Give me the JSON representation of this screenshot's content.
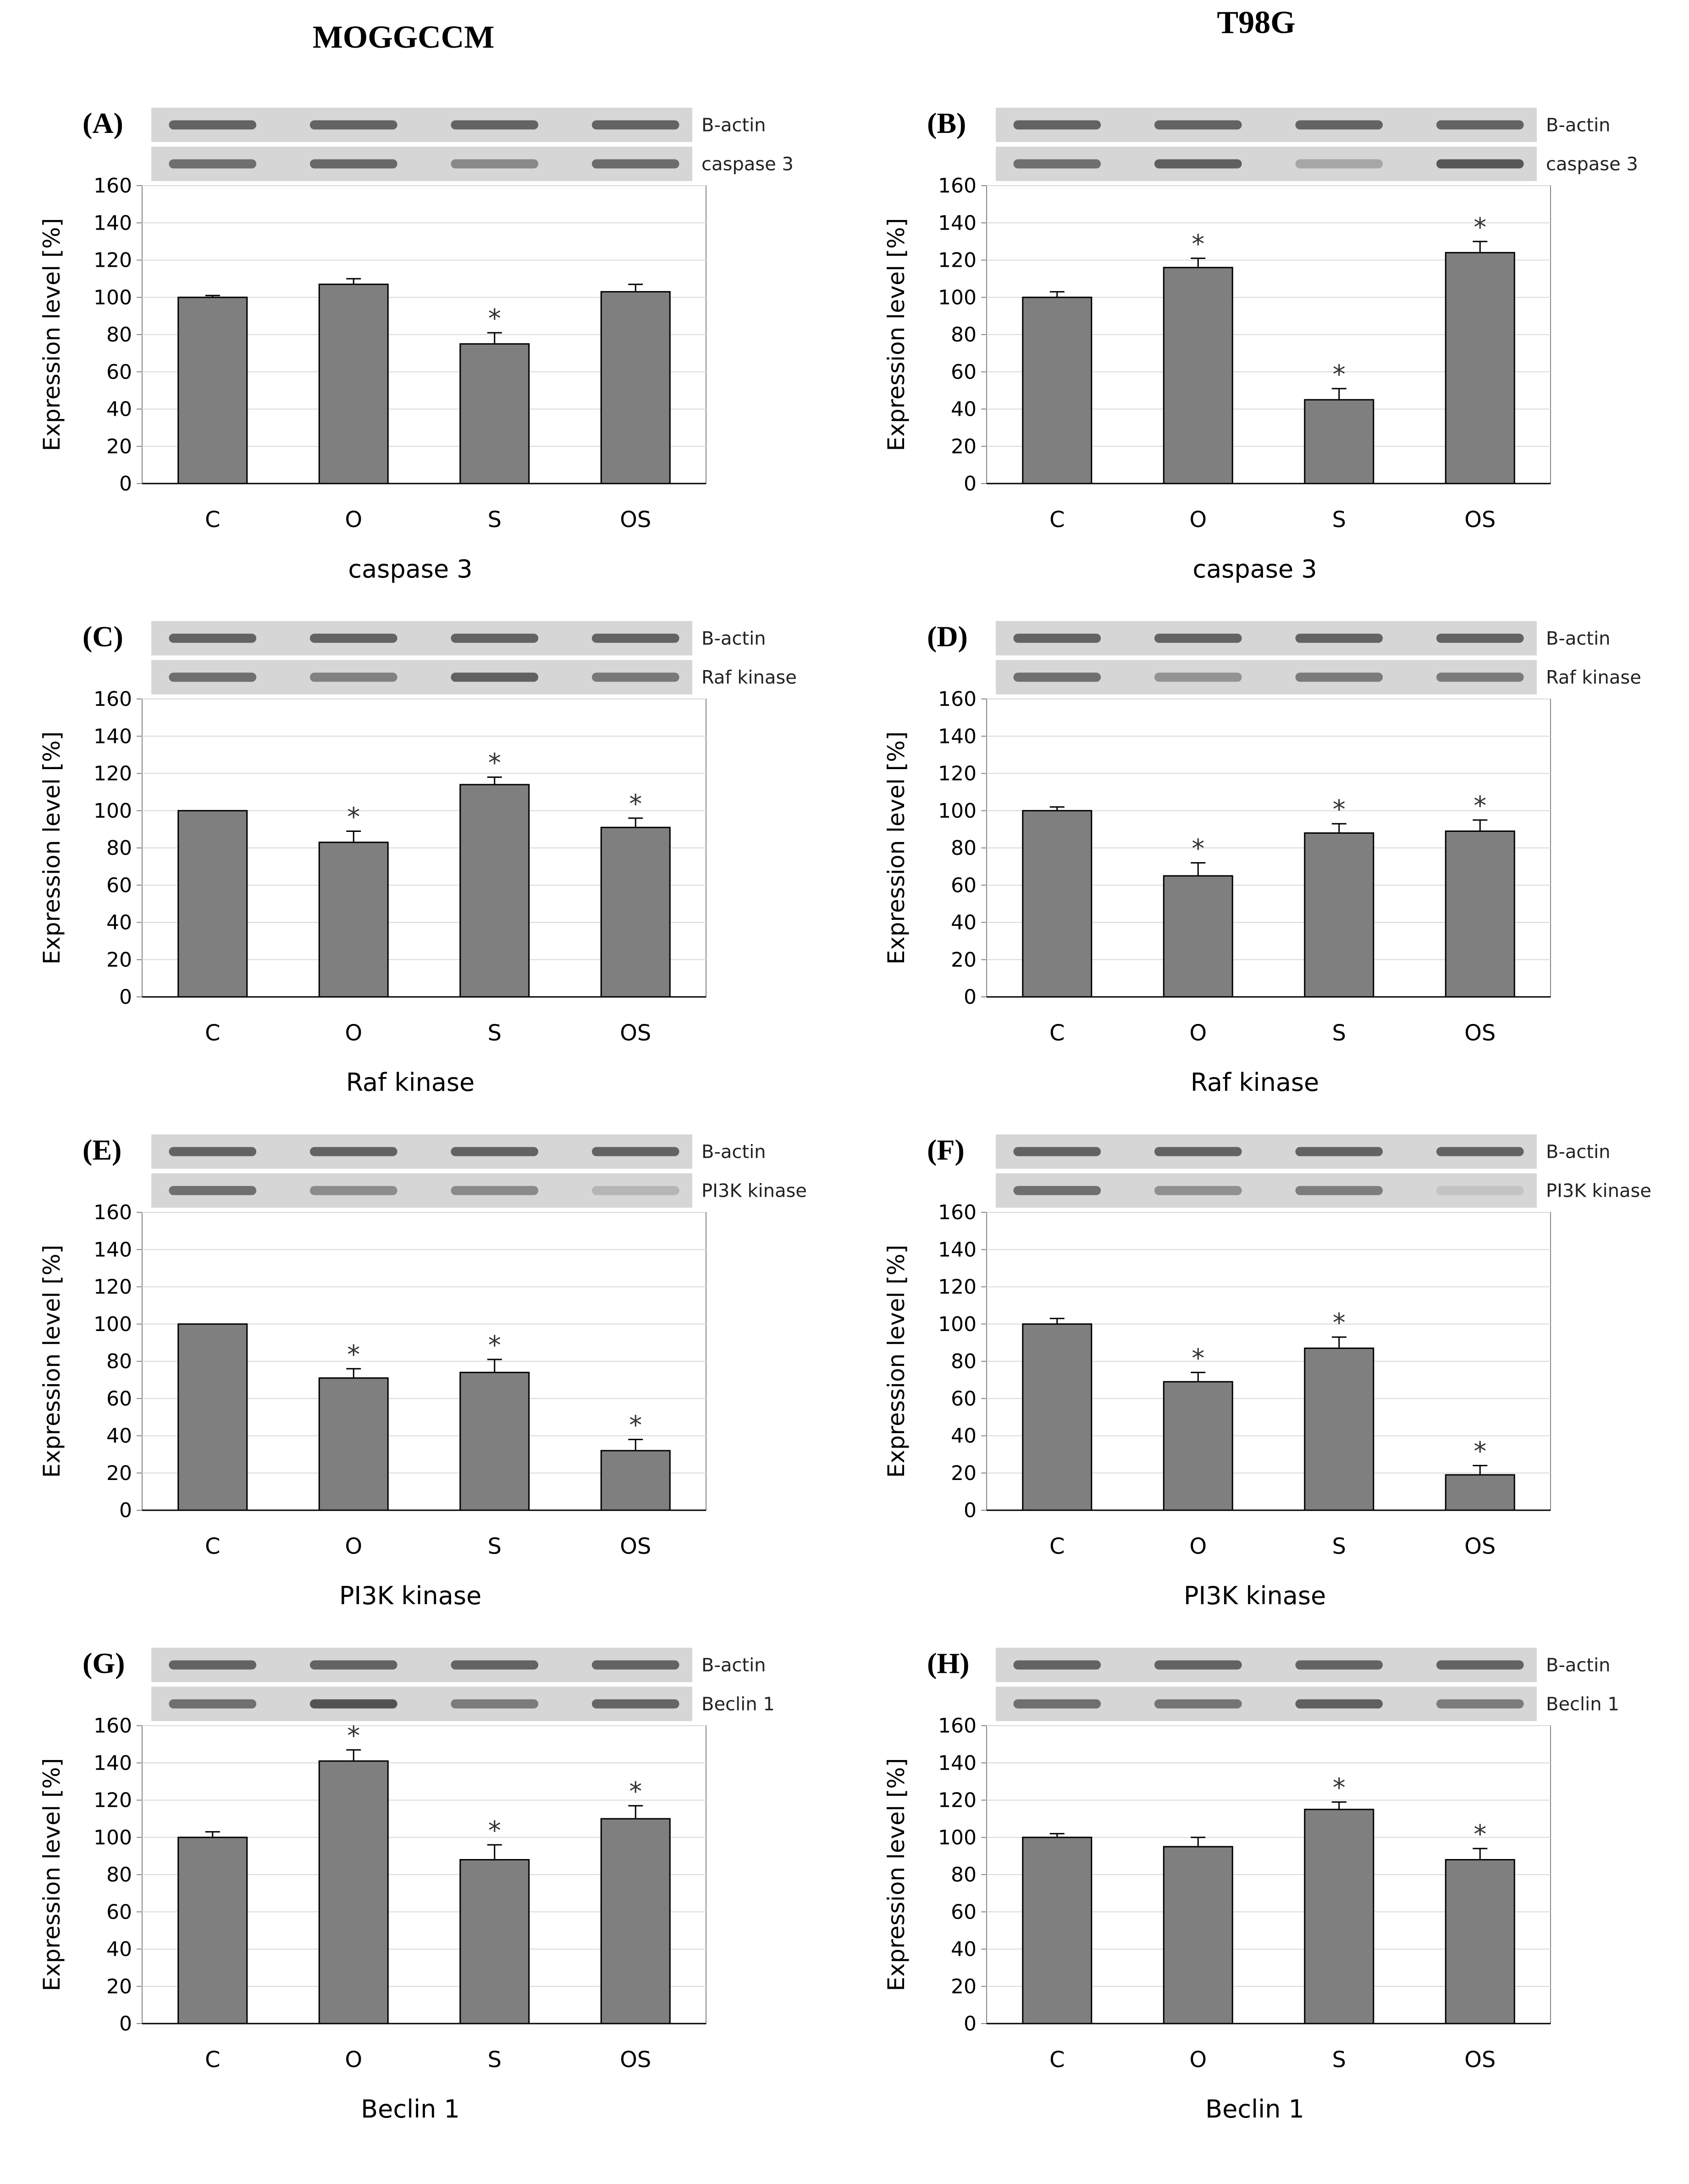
{
  "columns": {
    "left": "MOGGCCM",
    "right": "T98G"
  },
  "colors": {
    "bar": "#7f7f7f",
    "bar_stroke": "#000000",
    "grid": "#d9d9d9",
    "axis": "#868686",
    "blot_band": "#3c3c3c",
    "blot_bg": "#d6d6d6"
  },
  "chart_data": [
    {
      "panel": "(A)",
      "type": "bar",
      "cell_line": "MOGGCCM",
      "categories": [
        "C",
        "O",
        "S",
        "OS"
      ],
      "values": [
        100,
        107,
        75,
        103
      ],
      "errors": [
        1,
        3,
        6,
        4
      ],
      "significant": [
        false,
        false,
        true,
        false
      ],
      "marker": "*",
      "title": "caspase 3",
      "xlabel": "caspase 3",
      "ylabel": "Expression level [%]",
      "ylim": [
        0,
        160
      ],
      "yticks": [
        0,
        20,
        40,
        60,
        80,
        100,
        120,
        140,
        160
      ],
      "blot_labels": [
        "B-actin",
        "caspase 3"
      ]
    },
    {
      "panel": "(B)",
      "type": "bar",
      "cell_line": "T98G",
      "categories": [
        "C",
        "O",
        "S",
        "OS"
      ],
      "values": [
        100,
        116,
        45,
        124
      ],
      "errors": [
        3,
        5,
        6,
        6
      ],
      "significant": [
        false,
        true,
        true,
        true
      ],
      "marker": "*",
      "title": "caspase 3",
      "xlabel": "caspase 3",
      "ylabel": "Expression level [%]",
      "ylim": [
        0,
        160
      ],
      "yticks": [
        0,
        20,
        40,
        60,
        80,
        100,
        120,
        140,
        160
      ],
      "blot_labels": [
        "B-actin",
        "caspase 3"
      ]
    },
    {
      "panel": "(C)",
      "type": "bar",
      "cell_line": "MOGGCCM",
      "categories": [
        "C",
        "O",
        "S",
        "OS"
      ],
      "values": [
        100,
        83,
        114,
        91
      ],
      "errors": [
        0,
        6,
        4,
        5
      ],
      "significant": [
        false,
        true,
        true,
        true
      ],
      "marker": "*",
      "title": "Raf kinase",
      "xlabel": "Raf kinase",
      "ylabel": "Expression level [%]",
      "ylim": [
        0,
        160
      ],
      "yticks": [
        0,
        20,
        40,
        60,
        80,
        100,
        120,
        140,
        160
      ],
      "blot_labels": [
        "B-actin",
        "Raf kinase"
      ]
    },
    {
      "panel": "(D)",
      "type": "bar",
      "cell_line": "T98G",
      "categories": [
        "C",
        "O",
        "S",
        "OS"
      ],
      "values": [
        100,
        65,
        88,
        89
      ],
      "errors": [
        2,
        7,
        5,
        6
      ],
      "significant": [
        false,
        true,
        true,
        true
      ],
      "marker": "*",
      "title": "Raf kinase",
      "xlabel": "Raf kinase",
      "ylabel": "Expression level [%]",
      "ylim": [
        0,
        160
      ],
      "yticks": [
        0,
        20,
        40,
        60,
        80,
        100,
        120,
        140,
        160
      ],
      "blot_labels": [
        "B-actin",
        "Raf kinase"
      ]
    },
    {
      "panel": "(E)",
      "type": "bar",
      "cell_line": "MOGGCCM",
      "categories": [
        "C",
        "O",
        "S",
        "OS"
      ],
      "values": [
        100,
        71,
        74,
        32
      ],
      "errors": [
        0,
        5,
        7,
        6
      ],
      "significant": [
        false,
        true,
        true,
        true
      ],
      "marker": "*",
      "title": "PI3K kinase",
      "xlabel": "PI3K kinase",
      "ylabel": "Expression level [%]",
      "ylim": [
        0,
        160
      ],
      "yticks": [
        0,
        20,
        40,
        60,
        80,
        100,
        120,
        140,
        160
      ],
      "blot_labels": [
        "B-actin",
        "PI3K kinase"
      ]
    },
    {
      "panel": "(F)",
      "type": "bar",
      "cell_line": "T98G",
      "categories": [
        "C",
        "O",
        "S",
        "OS"
      ],
      "values": [
        100,
        69,
        87,
        19
      ],
      "errors": [
        3,
        5,
        6,
        5
      ],
      "significant": [
        false,
        true,
        true,
        true
      ],
      "marker": "*",
      "title": "PI3K kinase",
      "xlabel": "PI3K kinase",
      "ylabel": "Expression level [%]",
      "ylim": [
        0,
        160
      ],
      "yticks": [
        0,
        20,
        40,
        60,
        80,
        100,
        120,
        140,
        160
      ],
      "blot_labels": [
        "B-actin",
        "PI3K kinase"
      ]
    },
    {
      "panel": "(G)",
      "type": "bar",
      "cell_line": "MOGGCCM",
      "categories": [
        "C",
        "O",
        "S",
        "OS"
      ],
      "values": [
        100,
        141,
        88,
        110
      ],
      "errors": [
        3,
        6,
        8,
        7
      ],
      "significant": [
        false,
        true,
        true,
        true
      ],
      "marker": "*",
      "title": "Beclin 1",
      "xlabel": "Beclin 1",
      "ylabel": "Expression level [%]",
      "ylim": [
        0,
        160
      ],
      "yticks": [
        0,
        20,
        40,
        60,
        80,
        100,
        120,
        140,
        160
      ],
      "blot_labels": [
        "B-actin",
        "Beclin 1"
      ]
    },
    {
      "panel": "(H)",
      "type": "bar",
      "cell_line": "T98G",
      "categories": [
        "C",
        "O",
        "S",
        "OS"
      ],
      "values": [
        100,
        95,
        115,
        88
      ],
      "errors": [
        2,
        5,
        4,
        6
      ],
      "significant": [
        false,
        false,
        true,
        true
      ],
      "marker": "*",
      "title": "Beclin 1",
      "xlabel": "Beclin 1",
      "ylabel": "Expression level [%]",
      "ylim": [
        0,
        160
      ],
      "yticks": [
        0,
        20,
        40,
        60,
        80,
        100,
        120,
        140,
        160
      ],
      "blot_labels": [
        "B-actin",
        "Beclin 1"
      ]
    }
  ]
}
